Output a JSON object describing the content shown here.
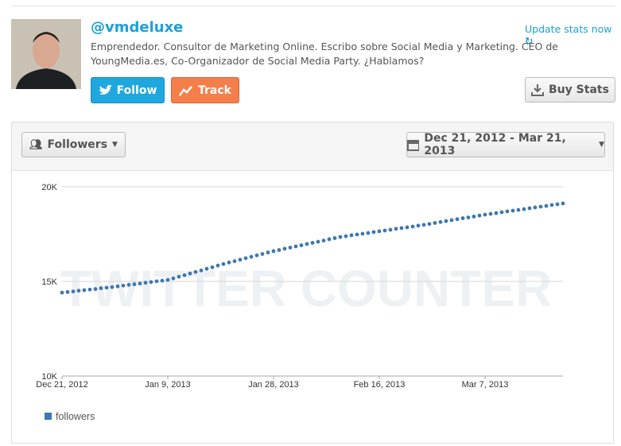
{
  "profile": {
    "handle": "@vmdeluxe",
    "bio": "Emprendedor. Consultor de Marketing Online. Escribo sobre Social Media y Marketing. CEO de YoungMedia.es, Co-Organizador de Social Media Party. ¿Hablamos?",
    "update_link": "Update stats now"
  },
  "buttons": {
    "follow": "Follow",
    "track": "Track",
    "buy_stats": "Buy Stats"
  },
  "controls": {
    "metric": "Followers",
    "date_range": "Dec 21, 2012 - Mar 21, 2013"
  },
  "chart_data": {
    "type": "scatter",
    "watermark": "TWITTER COUNTER",
    "x": [
      "2012-12-21",
      "2012-12-22",
      "2012-12-23",
      "2012-12-24",
      "2012-12-25",
      "2012-12-26",
      "2012-12-27",
      "2012-12-28",
      "2012-12-29",
      "2012-12-30",
      "2012-12-31",
      "2013-01-01",
      "2013-01-02",
      "2013-01-03",
      "2013-01-04",
      "2013-01-05",
      "2013-01-06",
      "2013-01-07",
      "2013-01-08",
      "2013-01-09",
      "2013-01-10",
      "2013-01-11",
      "2013-01-12",
      "2013-01-13",
      "2013-01-14",
      "2013-01-15",
      "2013-01-16",
      "2013-01-17",
      "2013-01-18",
      "2013-01-19",
      "2013-01-20",
      "2013-01-21",
      "2013-01-22",
      "2013-01-23",
      "2013-01-24",
      "2013-01-25",
      "2013-01-26",
      "2013-01-27",
      "2013-01-28",
      "2013-01-29",
      "2013-01-30",
      "2013-01-31",
      "2013-02-01",
      "2013-02-02",
      "2013-02-03",
      "2013-02-04",
      "2013-02-05",
      "2013-02-06",
      "2013-02-07",
      "2013-02-08",
      "2013-02-09",
      "2013-02-10",
      "2013-02-11",
      "2013-02-12",
      "2013-02-13",
      "2013-02-14",
      "2013-02-15",
      "2013-02-16",
      "2013-02-17",
      "2013-02-18",
      "2013-02-19",
      "2013-02-20",
      "2013-02-21",
      "2013-02-22",
      "2013-02-23",
      "2013-02-24",
      "2013-02-25",
      "2013-02-26",
      "2013-02-27",
      "2013-02-28",
      "2013-03-01",
      "2013-03-02",
      "2013-03-03",
      "2013-03-04",
      "2013-03-05",
      "2013-03-06",
      "2013-03-07",
      "2013-03-08",
      "2013-03-09",
      "2013-03-10",
      "2013-03-11",
      "2013-03-12",
      "2013-03-13",
      "2013-03-14",
      "2013-03-15",
      "2013-03-16",
      "2013-03-17",
      "2013-03-18",
      "2013-03-19",
      "2013-03-20",
      "2013-03-21"
    ],
    "series": [
      {
        "name": "followers",
        "color": "#3d78ae",
        "values": [
          14410,
          14440,
          14470,
          14510,
          14540,
          14570,
          14600,
          14640,
          14670,
          14700,
          14740,
          14780,
          14820,
          14850,
          14890,
          14930,
          14970,
          15010,
          15040,
          15080,
          15160,
          15250,
          15330,
          15420,
          15500,
          15580,
          15670,
          15750,
          15840,
          15920,
          16000,
          16070,
          16150,
          16230,
          16300,
          16380,
          16450,
          16530,
          16600,
          16660,
          16730,
          16790,
          16850,
          16910,
          16980,
          17040,
          17100,
          17160,
          17230,
          17290,
          17350,
          17390,
          17440,
          17480,
          17520,
          17560,
          17610,
          17650,
          17690,
          17730,
          17780,
          17820,
          17860,
          17900,
          17950,
          17990,
          18040,
          18090,
          18140,
          18190,
          18240,
          18290,
          18340,
          18380,
          18430,
          18480,
          18530,
          18570,
          18610,
          18660,
          18700,
          18740,
          18780,
          18820,
          18870,
          18910,
          18950,
          18990,
          19040,
          19080,
          19120
        ]
      }
    ],
    "xlim": [
      "2012-12-21",
      "2013-03-21"
    ],
    "xticks": [
      {
        "value": "2012-12-21",
        "label": "Dec 21, 2012"
      },
      {
        "value": "2013-01-09",
        "label": "Jan 9, 2013"
      },
      {
        "value": "2013-01-28",
        "label": "Jan 28, 2013"
      },
      {
        "value": "2013-02-16",
        "label": "Feb 16, 2013"
      },
      {
        "value": "2013-03-07",
        "label": "Mar 7, 2013"
      }
    ],
    "ylim": [
      10000,
      20000
    ],
    "yticks": [
      {
        "value": 10000,
        "label": "10K"
      },
      {
        "value": 15000,
        "label": "15K"
      },
      {
        "value": 20000,
        "label": "20K"
      }
    ],
    "grid": true,
    "legend": "bottom-left"
  }
}
